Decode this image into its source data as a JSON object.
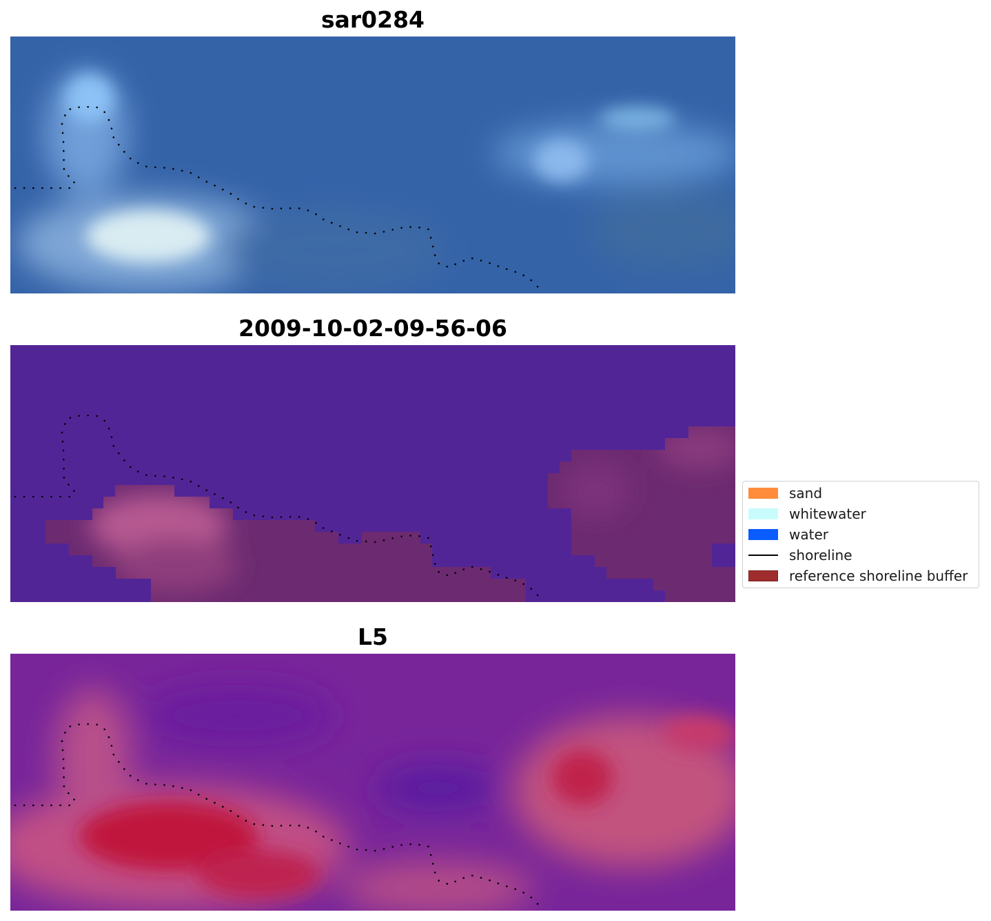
{
  "panels": [
    {
      "title": "sar0284"
    },
    {
      "title": "2009-10-02-09-56-06"
    },
    {
      "title": "L5"
    }
  ],
  "legend": {
    "items": [
      {
        "label": "sand",
        "kind": "patch",
        "color": "#ff8c3a"
      },
      {
        "label": "whitewater",
        "kind": "patch",
        "color": "#c8fcfc"
      },
      {
        "label": "water",
        "kind": "patch",
        "color": "#0b5cff"
      },
      {
        "label": "shoreline",
        "kind": "line",
        "color": "#000000"
      },
      {
        "label": "reference shoreline buffer",
        "kind": "patch",
        "color": "#a02d2d"
      }
    ]
  }
}
